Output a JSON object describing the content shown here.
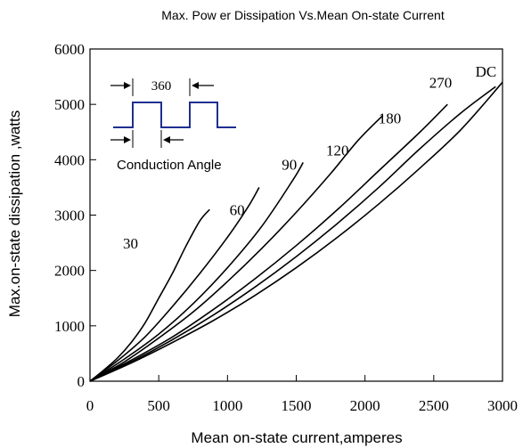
{
  "chart_data": {
    "type": "line",
    "title": "Max. Pow er Dissipation Vs.Mean On-state Current",
    "xlabel": "Mean on-state current,amperes",
    "ylabel": "Max.on-state dissipation ,watts",
    "xlim": [
      0,
      3000
    ],
    "ylim": [
      0,
      6000
    ],
    "xticks": [
      0,
      500,
      1000,
      1500,
      2000,
      2500,
      3000
    ],
    "yticks": [
      0,
      1000,
      2000,
      3000,
      4000,
      5000,
      6000
    ],
    "xtick_labels": [
      "0",
      "500",
      "1000",
      "1500",
      "2000",
      "2500",
      "3000"
    ],
    "ytick_labels": [
      "0",
      "1000",
      "2000",
      "3000",
      "4000",
      "5000",
      "6000"
    ],
    "grid": false,
    "series": [
      {
        "name": "30",
        "label_at": [
          295,
          2400
        ],
        "points": [
          [
            0,
            0
          ],
          [
            100,
            200
          ],
          [
            200,
            420
          ],
          [
            300,
            700
          ],
          [
            400,
            1050
          ],
          [
            500,
            1500
          ],
          [
            600,
            1950
          ],
          [
            700,
            2450
          ],
          [
            800,
            2900
          ],
          [
            870,
            3100
          ]
        ]
      },
      {
        "name": "60",
        "label_at": [
          1070,
          3000
        ],
        "points": [
          [
            0,
            0
          ],
          [
            200,
            370
          ],
          [
            400,
            800
          ],
          [
            600,
            1350
          ],
          [
            800,
            1950
          ],
          [
            1000,
            2600
          ],
          [
            1150,
            3150
          ],
          [
            1230,
            3500
          ]
        ]
      },
      {
        "name": "90",
        "label_at": [
          1450,
          3820
        ],
        "points": [
          [
            0,
            0
          ],
          [
            250,
            400
          ],
          [
            500,
            850
          ],
          [
            750,
            1400
          ],
          [
            1000,
            2050
          ],
          [
            1250,
            2800
          ],
          [
            1480,
            3650
          ],
          [
            1550,
            3950
          ]
        ]
      },
      {
        "name": "120",
        "label_at": [
          1800,
          4080
        ],
        "points": [
          [
            0,
            0
          ],
          [
            250,
            350
          ],
          [
            500,
            780
          ],
          [
            750,
            1250
          ],
          [
            1000,
            1800
          ],
          [
            1250,
            2400
          ],
          [
            1500,
            3050
          ],
          [
            1750,
            3750
          ],
          [
            1950,
            4350
          ],
          [
            2130,
            4800
          ]
        ]
      },
      {
        "name": "180",
        "label_at": [
          2180,
          4660
        ],
        "points": [
          [
            0,
            0
          ],
          [
            300,
            380
          ],
          [
            600,
            800
          ],
          [
            900,
            1300
          ],
          [
            1200,
            1850
          ],
          [
            1500,
            2450
          ],
          [
            1800,
            3100
          ],
          [
            2100,
            3800
          ],
          [
            2400,
            4500
          ],
          [
            2600,
            5000
          ]
        ]
      },
      {
        "name": "270",
        "label_at": [
          2550,
          5300
        ],
        "points": [
          [
            0,
            0
          ],
          [
            300,
            350
          ],
          [
            600,
            750
          ],
          [
            900,
            1200
          ],
          [
            1200,
            1700
          ],
          [
            1500,
            2250
          ],
          [
            1800,
            2850
          ],
          [
            2100,
            3500
          ],
          [
            2400,
            4200
          ],
          [
            2700,
            4850
          ],
          [
            2950,
            5320
          ]
        ]
      },
      {
        "name": "DC",
        "label_at": [
          2880,
          5500
        ],
        "points": [
          [
            0,
            0
          ],
          [
            300,
            330
          ],
          [
            600,
            700
          ],
          [
            900,
            1100
          ],
          [
            1200,
            1550
          ],
          [
            1500,
            2050
          ],
          [
            1800,
            2600
          ],
          [
            2100,
            3200
          ],
          [
            2400,
            3850
          ],
          [
            2700,
            4550
          ],
          [
            3000,
            5400
          ]
        ]
      }
    ],
    "inset": {
      "period_label": "360",
      "conduction_label": "Conduction Angle",
      "waveform_color": "#1f2f8f"
    }
  }
}
